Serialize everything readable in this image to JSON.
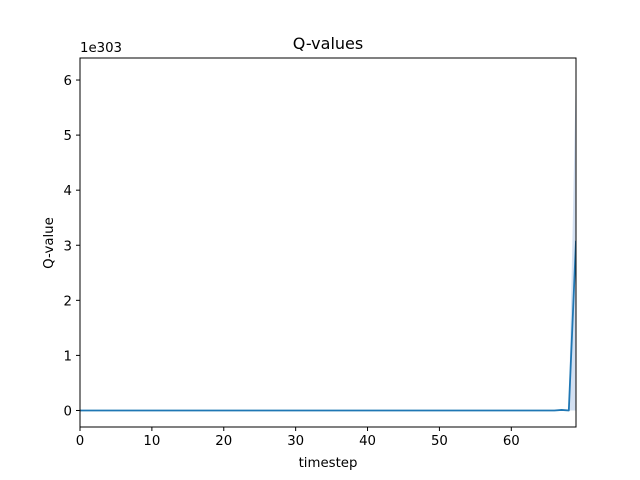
{
  "chart_data": {
    "type": "line",
    "title": "Q-values",
    "xlabel": "timestep",
    "ylabel": "Q-value",
    "offset_label": "1e303",
    "xlim": [
      0,
      69
    ],
    "ylim": [
      -0.3,
      6.4
    ],
    "x_ticks": [
      0,
      10,
      20,
      30,
      40,
      50,
      60
    ],
    "y_ticks": [
      0,
      1,
      2,
      3,
      4,
      5,
      6
    ],
    "x_tick_labels": [
      "0",
      "10",
      "20",
      "30",
      "40",
      "50",
      "60"
    ],
    "y_tick_labels": [
      "0",
      "1",
      "2",
      "3",
      "4",
      "5",
      "6"
    ],
    "grid": false,
    "series": [
      {
        "name": "Q-value",
        "color": "#1f77b4",
        "x": [
          0,
          10,
          20,
          30,
          40,
          50,
          60,
          66,
          67,
          68,
          69
        ],
        "values": [
          0,
          0,
          0,
          0,
          0,
          0,
          0,
          0,
          0.01,
          0,
          3.08
        ],
        "band_low": [
          0,
          0,
          0,
          0,
          0,
          0,
          0,
          0,
          0,
          0,
          0
        ],
        "band_high": [
          0,
          0,
          0,
          0,
          0,
          0,
          0,
          0,
          0.02,
          0.02,
          6.2
        ],
        "band_color": "#aec7e8"
      }
    ]
  }
}
